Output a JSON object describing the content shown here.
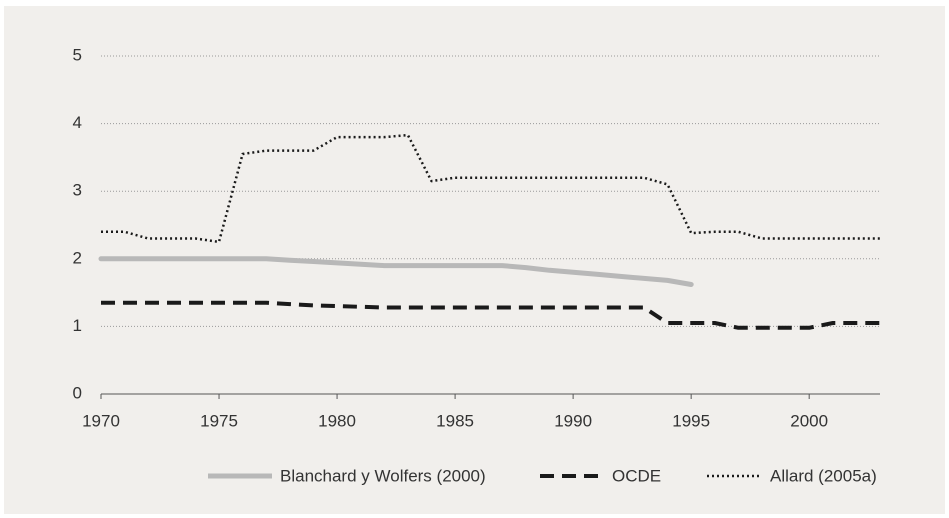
{
  "chart_data": {
    "type": "line",
    "x": [
      1970,
      1971,
      1972,
      1973,
      1974,
      1975,
      1976,
      1977,
      1978,
      1979,
      1980,
      1981,
      1982,
      1983,
      1984,
      1985,
      1986,
      1987,
      1988,
      1989,
      1990,
      1991,
      1992,
      1993,
      1994,
      1995,
      1996,
      1997,
      1998,
      1999,
      2000,
      2001,
      2002,
      2003
    ],
    "series": [
      {
        "name": "Blanchard y Wolfers (2000)",
        "color": "#b8b8b8",
        "style": "solid",
        "values": [
          2,
          2,
          2,
          2,
          2,
          2,
          2,
          2,
          1.98,
          1.96,
          1.94,
          1.92,
          1.9,
          1.9,
          1.9,
          1.9,
          1.9,
          1.9,
          1.87,
          1.83,
          1.8,
          1.77,
          1.74,
          1.71,
          1.68,
          1.62,
          null,
          null,
          null,
          null,
          null,
          null,
          null,
          null
        ]
      },
      {
        "name": "OCDE",
        "color": "#1a1a1a",
        "style": "dashed",
        "values": [
          1.35,
          1.35,
          1.35,
          1.35,
          1.35,
          1.35,
          1.35,
          1.35,
          1.33,
          1.31,
          1.3,
          1.29,
          1.28,
          1.28,
          1.28,
          1.28,
          1.28,
          1.28,
          1.28,
          1.28,
          1.28,
          1.28,
          1.28,
          1.28,
          1.05,
          1.05,
          1.05,
          0.98,
          0.98,
          0.98,
          0.98,
          1.05,
          1.05,
          1.05
        ]
      },
      {
        "name": "Allard (2005a)",
        "color": "#1a1a1a",
        "style": "dotted",
        "values": [
          2.4,
          2.4,
          2.3,
          2.3,
          2.3,
          2.25,
          3.55,
          3.6,
          3.6,
          3.6,
          3.8,
          3.8,
          3.8,
          3.83,
          3.15,
          3.2,
          3.2,
          3.2,
          3.2,
          3.2,
          3.2,
          3.2,
          3.2,
          3.2,
          3.1,
          2.38,
          2.4,
          2.4,
          2.3,
          2.3,
          2.3,
          2.3,
          2.3,
          2.3
        ]
      }
    ],
    "xlim": [
      1970,
      2003
    ],
    "xticks": [
      1970,
      1975,
      1980,
      1985,
      1990,
      1995,
      2000
    ],
    "ylim": [
      0,
      5
    ],
    "yticks": [
      0,
      1,
      2,
      3,
      4,
      5
    ],
    "grid": true,
    "legend": "bottom"
  }
}
